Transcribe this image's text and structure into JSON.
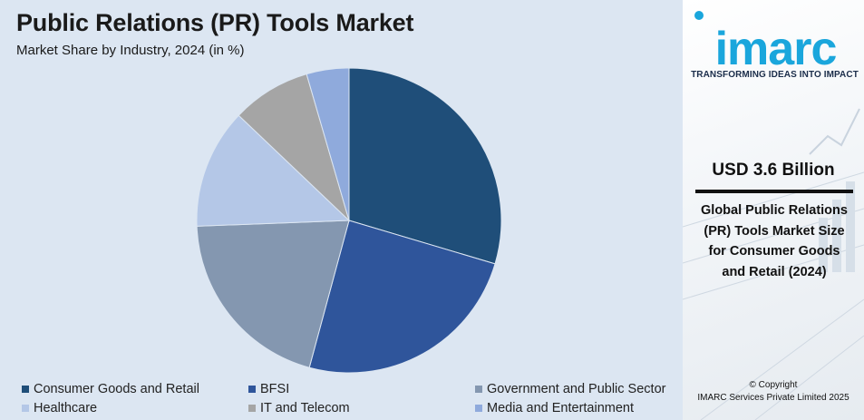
{
  "title": "Public Relations (PR) Tools Market",
  "subtitle": "Market Share by Industry, 2024 (in %)",
  "chart_data": {
    "type": "pie",
    "title": "Public Relations (PR) Tools Market",
    "subtitle": "Market Share by Industry, 2024 (in %)",
    "categories": [
      "Consumer Goods and Retail",
      "BFSI",
      "Government and Public Sector",
      "Healthcare",
      "IT and Telecom",
      "Media and Entertainment"
    ],
    "values": [
      29.6,
      24.6,
      20.2,
      12.7,
      8.4,
      4.5
    ],
    "colors": [
      "#1f4e79",
      "#2f559b",
      "#8497b0",
      "#b4c7e7",
      "#a5a5a5",
      "#8faadc"
    ],
    "start_angle": "12 o'clock",
    "direction": "clockwise",
    "legend_position": "bottom"
  },
  "legend": [
    {
      "label": "Consumer Goods and Retail",
      "color": "#1f4e79"
    },
    {
      "label": "BFSI",
      "color": "#2f559b"
    },
    {
      "label": "Government and Public Sector",
      "color": "#8497b0"
    },
    {
      "label": "Healthcare",
      "color": "#b4c7e7"
    },
    {
      "label": "IT and Telecom",
      "color": "#a5a5a5"
    },
    {
      "label": "Media and Entertainment",
      "color": "#8faadc"
    }
  ],
  "sidebar": {
    "logo": "imarc",
    "tagline": "TRANSFORMING IDEAS INTO IMPACT",
    "stat_value": "USD 3.6 Billion",
    "stat_desc": "Global Public Relations (PR) Tools Market Size for Consumer Goods and Retail (2024)",
    "copyright_line1": "© Copyright",
    "copyright_line2": "IMARC Services Private Limited 2025"
  }
}
